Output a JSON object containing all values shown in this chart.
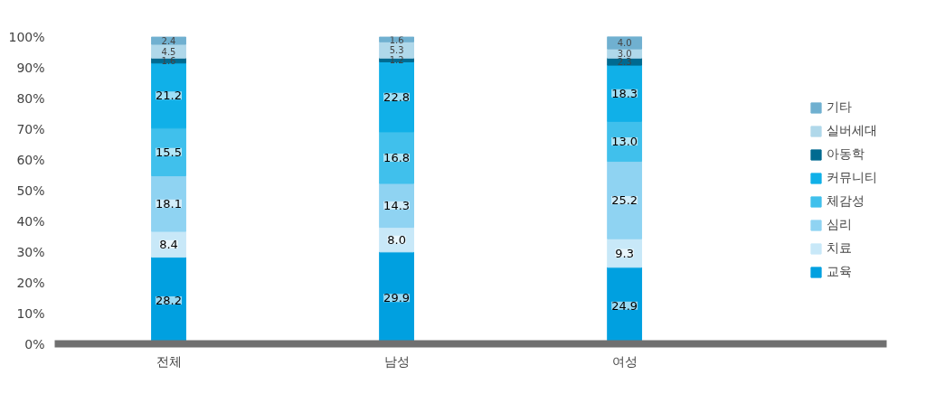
{
  "chart_data": {
    "type": "bar",
    "stacked": true,
    "legend": "right",
    "grid": false,
    "categories": [
      "전체",
      "남성",
      "여성"
    ],
    "ylim": [
      0,
      100
    ],
    "yticks": [
      {
        "value": 0,
        "label": "0%"
      },
      {
        "value": 10,
        "label": "10%"
      },
      {
        "value": 20,
        "label": "20%"
      },
      {
        "value": 30,
        "label": "30%"
      },
      {
        "value": 40,
        "label": "40%"
      },
      {
        "value": 50,
        "label": "50%"
      },
      {
        "value": 60,
        "label": "60%"
      },
      {
        "value": 70,
        "label": "70%"
      },
      {
        "value": 80,
        "label": "80%"
      },
      {
        "value": 90,
        "label": "90%"
      },
      {
        "value": 100,
        "label": "100%"
      }
    ],
    "series": [
      {
        "name": "교육",
        "color": "#00a0e0",
        "values": [
          28.2,
          29.9,
          24.9
        ],
        "value_labels": [
          "28.2",
          "29.9",
          "24.9"
        ]
      },
      {
        "name": "치료",
        "color": "#c8e8f8",
        "values": [
          8.4,
          8.0,
          9.3
        ],
        "value_labels": [
          "8.4",
          "8.0",
          "9.3"
        ]
      },
      {
        "name": "심리",
        "color": "#8fd3f2",
        "values": [
          18.1,
          14.3,
          25.2
        ],
        "value_labels": [
          "18.1",
          "14.3",
          "25.2"
        ]
      },
      {
        "name": "체감성",
        "color": "#40c0ec",
        "values": [
          15.5,
          16.8,
          13.0
        ],
        "value_labels": [
          "15.5",
          "16.8",
          "13.0"
        ]
      },
      {
        "name": "커뮤니티",
        "color": "#10b0e8",
        "values": [
          21.2,
          22.8,
          18.3
        ],
        "value_labels": [
          "21.2",
          "22.8",
          "18.3"
        ]
      },
      {
        "name": "아동학",
        "color": "#006a90",
        "values": [
          1.6,
          1.2,
          2.3
        ],
        "value_labels": [
          "1.6",
          "1.2",
          "2.3"
        ]
      },
      {
        "name": "실버세대",
        "color": "#b0d8ea",
        "values": [
          4.5,
          5.3,
          3.0
        ],
        "value_labels": [
          "4.5",
          "5.3",
          "3.0"
        ]
      },
      {
        "name": "기타",
        "color": "#70b0d0",
        "values": [
          2.4,
          1.6,
          4.0
        ],
        "value_labels": [
          "2.4",
          "1.6",
          "4.0"
        ]
      }
    ]
  }
}
